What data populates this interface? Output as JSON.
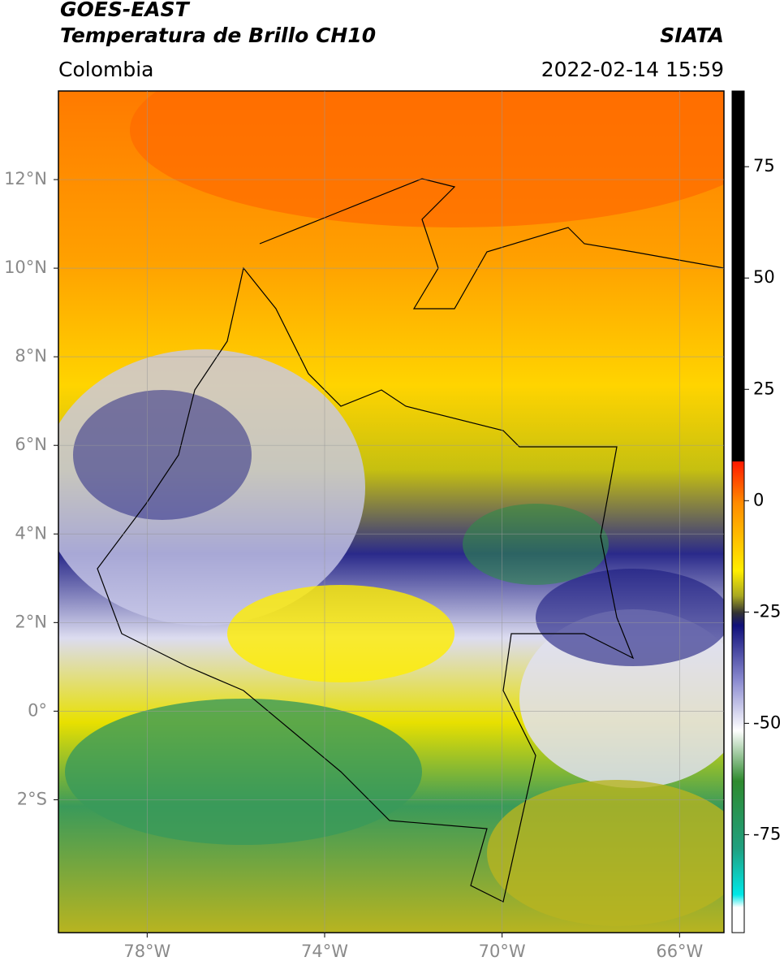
{
  "header": {
    "satellite": "GOES-EAST",
    "product": "Temperatura de Brillo CH10",
    "source": "SIATA",
    "region": "Colombia",
    "datetime": "2022-02-14 15:59"
  },
  "map": {
    "xlim": [
      -80,
      -65
    ],
    "ylim": [
      -5,
      14
    ],
    "xticks": [
      {
        "value": -78,
        "label": "78°W"
      },
      {
        "value": -74,
        "label": "74°W"
      },
      {
        "value": -70,
        "label": "70°W"
      },
      {
        "value": -66,
        "label": "66°W"
      }
    ],
    "yticks": [
      {
        "value": 12,
        "label": "12°N"
      },
      {
        "value": 10,
        "label": "10°N"
      },
      {
        "value": 8,
        "label": "8°N"
      },
      {
        "value": 6,
        "label": "6°N"
      },
      {
        "value": 4,
        "label": "4°N"
      },
      {
        "value": 2,
        "label": "2°N"
      },
      {
        "value": 0,
        "label": "0°"
      },
      {
        "value": -2,
        "label": "2°S"
      }
    ],
    "grid": true
  },
  "colorbar": {
    "lim": [
      -97,
      92
    ],
    "ticks": [
      75,
      50,
      25,
      0,
      -25,
      -50,
      -75
    ]
  }
}
